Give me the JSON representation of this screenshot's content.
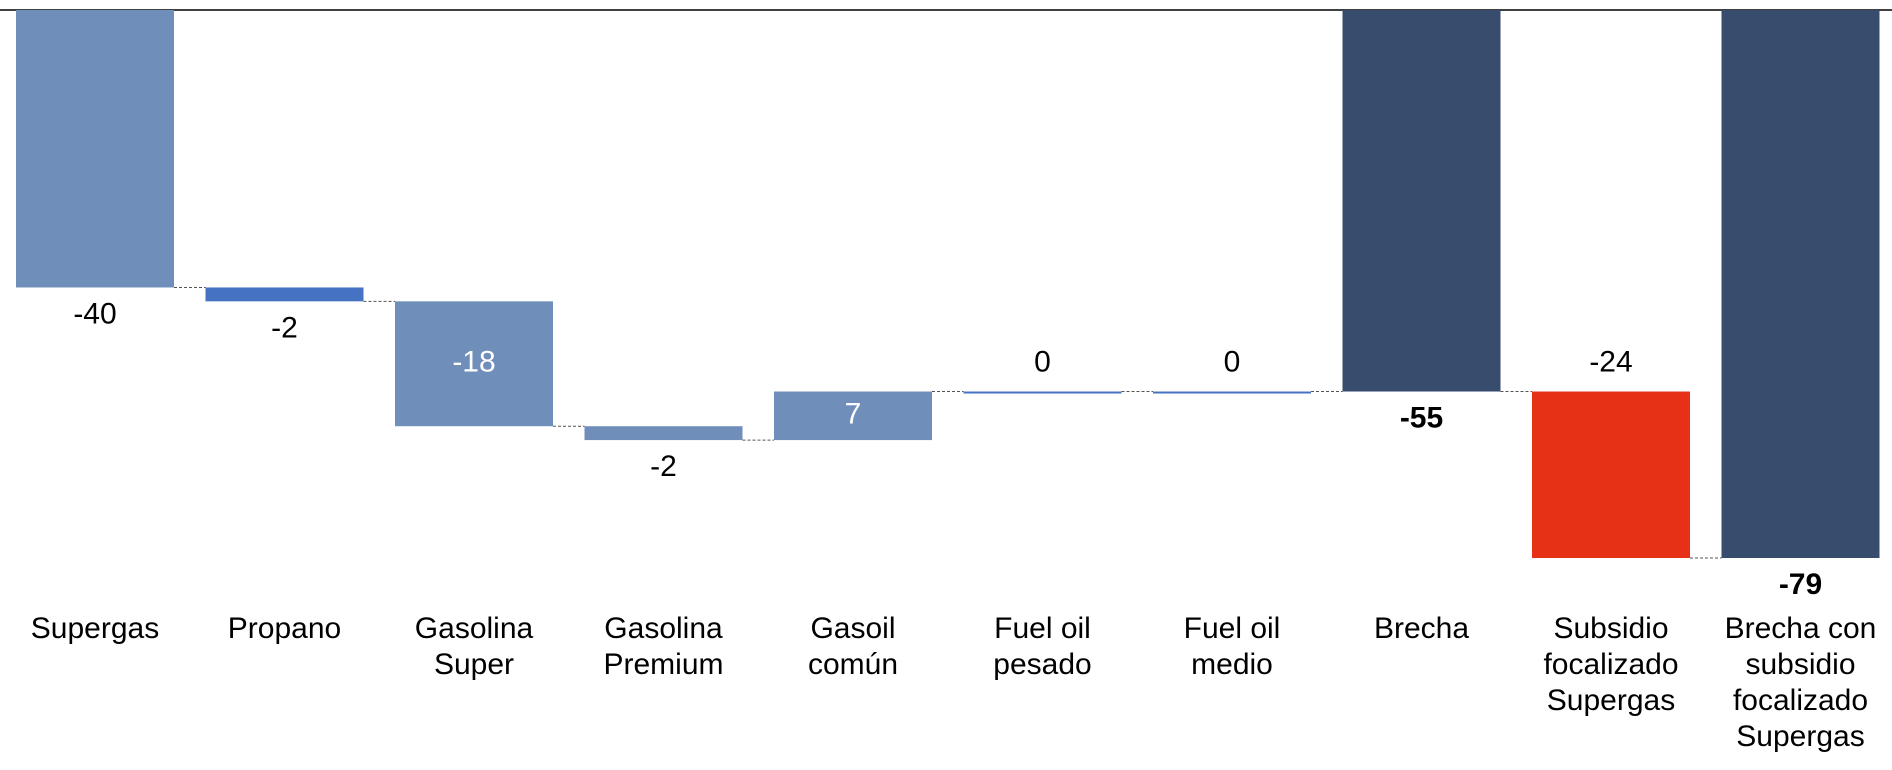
{
  "chart_data": {
    "type": "waterfall",
    "categories": [
      "Supergas",
      "Propano",
      "Gasolina\nSuper",
      "Gasolina\nPremium",
      "Gasoil\ncomún",
      "Fuel oil\npesado",
      "Fuel oil\nmedio",
      "Brecha",
      "Subsidio\nfocalizado\nSupergas",
      "Brecha con\nsubsidio\nfocalizado\nSupergas"
    ],
    "values": [
      -40,
      -2,
      -18,
      -2,
      7,
      0,
      0,
      -55,
      -24,
      -79
    ],
    "is_total": [
      false,
      false,
      false,
      false,
      false,
      false,
      false,
      true,
      false,
      true
    ],
    "colors": [
      "#6f8fba",
      "#4672c4",
      "#6f8fba",
      "#6f8fba",
      "#6f8fba",
      "#4672c4",
      "#4672c4",
      "#384c6e",
      "#e63117",
      "#384c6e"
    ],
    "ylim": [
      -79,
      0
    ]
  }
}
